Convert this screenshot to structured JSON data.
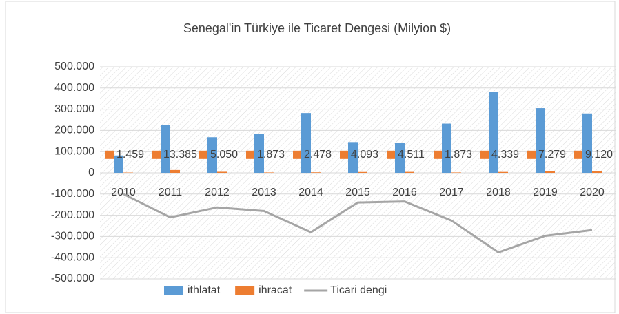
{
  "chart_data": {
    "type": "bar",
    "title": "Senegal'in Türkiye ile Ticaret Dengesi (Milyion $)",
    "categories": [
      "2010",
      "2011",
      "2012",
      "2013",
      "2014",
      "2015",
      "2016",
      "2017",
      "2018",
      "2019",
      "2020"
    ],
    "series": [
      {
        "name": "ithlatat",
        "type": "bar",
        "color": "#5b9bd5",
        "values": [
          82000,
          225000,
          168000,
          183000,
          282000,
          145000,
          140000,
          232000,
          380000,
          305000,
          280000
        ]
      },
      {
        "name": "ihracat",
        "type": "bar",
        "color": "#ed7d31",
        "values": [
          1459,
          13385,
          5050,
          1873,
          2478,
          4093,
          4511,
          1873,
          4339,
          7279,
          9120
        ],
        "value_labels": [
          "1.459",
          "13.385",
          "5.050",
          "1.873",
          "2.478",
          "4.093",
          "4.511",
          "1.873",
          "4.339",
          "7.279",
          "9.120"
        ]
      },
      {
        "name": "Ticari dengi",
        "type": "line",
        "color": "#a5a5a5",
        "values": [
          -100000,
          -210000,
          -163000,
          -180000,
          -280000,
          -140000,
          -135000,
          -225000,
          -375000,
          -297000,
          -270000
        ]
      }
    ],
    "ylim": [
      -500000,
      500000
    ],
    "yticks": [
      {
        "value": -500000,
        "label": "-500.000"
      },
      {
        "value": -400000,
        "label": "-400.000"
      },
      {
        "value": -300000,
        "label": "-300.000"
      },
      {
        "value": -200000,
        "label": "-200.000"
      },
      {
        "value": -100000,
        "label": "-100.000"
      },
      0,
      {
        "value": 100000,
        "label": "100.000"
      },
      {
        "value": 200000,
        "label": "200.000"
      },
      {
        "value": 300000,
        "label": "300.000"
      },
      {
        "value": 400000,
        "label": "400.000"
      },
      {
        "value": 500000,
        "label": "500.000"
      }
    ],
    "grid": true,
    "legend": "bottom"
  }
}
